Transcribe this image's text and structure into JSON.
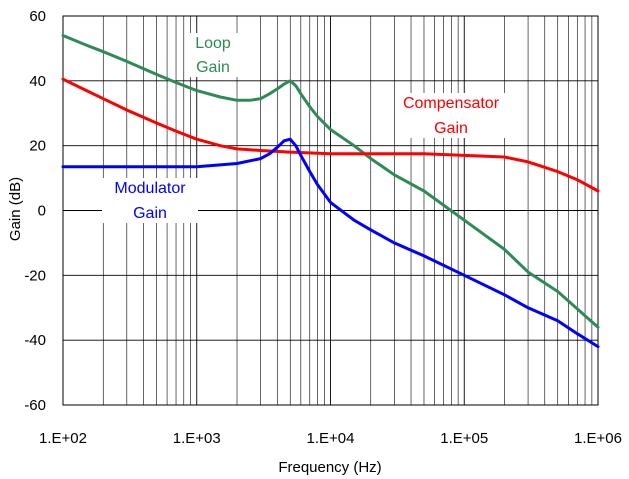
{
  "chart_data": {
    "type": "line",
    "title": "",
    "xlabel": "Frequency (Hz)",
    "ylabel": "Gain (dB)",
    "x_scale": "log",
    "xlim": [
      100,
      1000000
    ],
    "ylim": [
      -60,
      60
    ],
    "x_ticks": [
      {
        "value": 100,
        "label": "1.E+02"
      },
      {
        "value": 1000,
        "label": "1.E+03"
      },
      {
        "value": 10000,
        "label": "1.E+04"
      },
      {
        "value": 100000,
        "label": "1.E+05"
      },
      {
        "value": 1000000,
        "label": "1.E+06"
      }
    ],
    "y_ticks": [
      {
        "value": 60,
        "label": "60"
      },
      {
        "value": 40,
        "label": "40"
      },
      {
        "value": 20,
        "label": "20"
      },
      {
        "value": 0,
        "label": "0"
      },
      {
        "value": -20,
        "label": "-20"
      },
      {
        "value": -40,
        "label": "-40"
      },
      {
        "value": -60,
        "label": "-60"
      }
    ],
    "grid": true,
    "legend": "none",
    "annotations": [
      {
        "lines": [
          "Loop",
          "Gain"
        ],
        "color": "#2e8b57",
        "series": 0
      },
      {
        "lines": [
          "Compensator",
          "Gain"
        ],
        "color": "#ff0000",
        "series": 1
      },
      {
        "lines": [
          "Modulator",
          "Gain"
        ],
        "color": "#0000ff",
        "series": 2
      }
    ],
    "series": [
      {
        "color": "#2e8b57",
        "x": [
          100,
          150,
          200,
          300,
          500,
          700,
          1000,
          1500,
          2000,
          2500,
          3000,
          3500,
          4000,
          4500,
          5000,
          5500,
          6000,
          7000,
          8000,
          10000,
          15000,
          20000,
          30000,
          50000,
          100000,
          200000,
          300000,
          500000,
          1000000
        ],
        "y": [
          54,
          51,
          49,
          46,
          42,
          39.5,
          37,
          35,
          34,
          34,
          34.5,
          36,
          37.5,
          39,
          40,
          38.5,
          36,
          32,
          29,
          25,
          20,
          16,
          11,
          6,
          -3,
          -12,
          -19,
          -25,
          -36
        ]
      },
      {
        "color": "#ff0000",
        "x": [
          100,
          150,
          200,
          300,
          500,
          700,
          1000,
          1500,
          2000,
          3000,
          5000,
          10000,
          20000,
          50000,
          100000,
          200000,
          300000,
          500000,
          700000,
          1000000
        ],
        "y": [
          40.5,
          37,
          34.5,
          31,
          27,
          24.5,
          22,
          20,
          19,
          18.5,
          18,
          17.5,
          17.5,
          17.5,
          17,
          16.5,
          15,
          12,
          9.5,
          6
        ]
      },
      {
        "color": "#0000ff",
        "x": [
          100,
          200,
          500,
          1000,
          2000,
          3000,
          3500,
          4000,
          4500,
          5000,
          5500,
          6000,
          7000,
          8000,
          10000,
          15000,
          20000,
          30000,
          50000,
          100000,
          200000,
          300000,
          500000,
          700000,
          1000000
        ],
        "y": [
          13.5,
          13.5,
          13.5,
          13.5,
          14.5,
          16,
          17.5,
          19.5,
          21.5,
          22,
          20,
          17,
          12,
          8,
          2.5,
          -3,
          -6,
          -10,
          -14,
          -20,
          -26,
          -30,
          -34,
          -38,
          -42
        ]
      }
    ]
  }
}
